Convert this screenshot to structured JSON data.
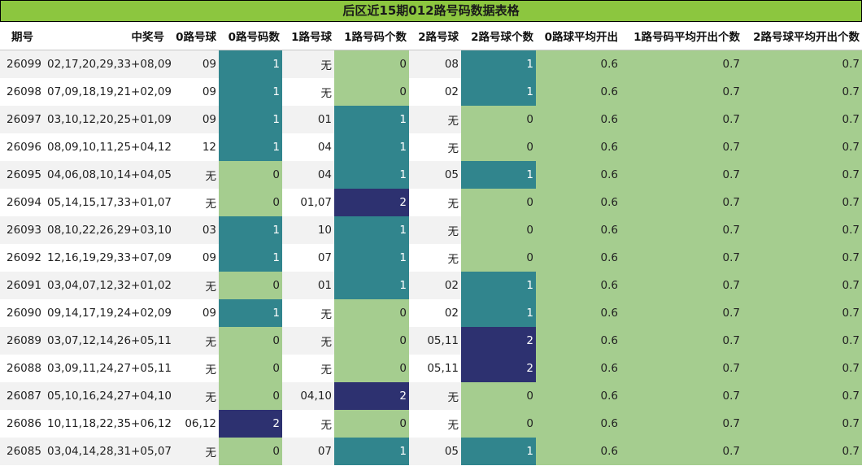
{
  "title": "后区近15期012路号码数据表格",
  "columns": [
    "期号",
    "中奖号",
    "0路号球",
    "0路号码数",
    "1路号球",
    "1路号码个数",
    "2路号球",
    "2路号球个数",
    "0路球平均开出",
    "1路号码平均开出个数",
    "2路号球平均开出个数"
  ],
  "colors": {
    "title_bg": "#8cc63f",
    "count_0": "#a5cd8f",
    "count_1": "#31858d",
    "count_2": "#2d3170",
    "average_bg": "#a5cd8f"
  },
  "rows": [
    {
      "issue": "26099",
      "numbers": "02,17,20,29,33+08,09",
      "r0_balls": "09",
      "r0_count": "1",
      "r1_balls": "无",
      "r1_count": "0",
      "r2_balls": "08",
      "r2_count": "1",
      "r0_avg": "0.6",
      "r1_avg": "0.7",
      "r2_avg": "0.7"
    },
    {
      "issue": "26098",
      "numbers": "07,09,18,19,21+02,09",
      "r0_balls": "09",
      "r0_count": "1",
      "r1_balls": "无",
      "r1_count": "0",
      "r2_balls": "02",
      "r2_count": "1",
      "r0_avg": "0.6",
      "r1_avg": "0.7",
      "r2_avg": "0.7"
    },
    {
      "issue": "26097",
      "numbers": "03,10,12,20,25+01,09",
      "r0_balls": "09",
      "r0_count": "1",
      "r1_balls": "01",
      "r1_count": "1",
      "r2_balls": "无",
      "r2_count": "0",
      "r0_avg": "0.6",
      "r1_avg": "0.7",
      "r2_avg": "0.7"
    },
    {
      "issue": "26096",
      "numbers": "08,09,10,11,25+04,12",
      "r0_balls": "12",
      "r0_count": "1",
      "r1_balls": "04",
      "r1_count": "1",
      "r2_balls": "无",
      "r2_count": "0",
      "r0_avg": "0.6",
      "r1_avg": "0.7",
      "r2_avg": "0.7"
    },
    {
      "issue": "26095",
      "numbers": "04,06,08,10,14+04,05",
      "r0_balls": "无",
      "r0_count": "0",
      "r1_balls": "04",
      "r1_count": "1",
      "r2_balls": "05",
      "r2_count": "1",
      "r0_avg": "0.6",
      "r1_avg": "0.7",
      "r2_avg": "0.7"
    },
    {
      "issue": "26094",
      "numbers": "05,14,15,17,33+01,07",
      "r0_balls": "无",
      "r0_count": "0",
      "r1_balls": "01,07",
      "r1_count": "2",
      "r2_balls": "无",
      "r2_count": "0",
      "r0_avg": "0.6",
      "r1_avg": "0.7",
      "r2_avg": "0.7"
    },
    {
      "issue": "26093",
      "numbers": "08,10,22,26,29+03,10",
      "r0_balls": "03",
      "r0_count": "1",
      "r1_balls": "10",
      "r1_count": "1",
      "r2_balls": "无",
      "r2_count": "0",
      "r0_avg": "0.6",
      "r1_avg": "0.7",
      "r2_avg": "0.7"
    },
    {
      "issue": "26092",
      "numbers": "12,16,19,29,33+07,09",
      "r0_balls": "09",
      "r0_count": "1",
      "r1_balls": "07",
      "r1_count": "1",
      "r2_balls": "无",
      "r2_count": "0",
      "r0_avg": "0.6",
      "r1_avg": "0.7",
      "r2_avg": "0.7"
    },
    {
      "issue": "26091",
      "numbers": "03,04,07,12,32+01,02",
      "r0_balls": "无",
      "r0_count": "0",
      "r1_balls": "01",
      "r1_count": "1",
      "r2_balls": "02",
      "r2_count": "1",
      "r0_avg": "0.6",
      "r1_avg": "0.7",
      "r2_avg": "0.7"
    },
    {
      "issue": "26090",
      "numbers": "09,14,17,19,24+02,09",
      "r0_balls": "09",
      "r0_count": "1",
      "r1_balls": "无",
      "r1_count": "0",
      "r2_balls": "02",
      "r2_count": "1",
      "r0_avg": "0.6",
      "r1_avg": "0.7",
      "r2_avg": "0.7"
    },
    {
      "issue": "26089",
      "numbers": "03,07,12,14,26+05,11",
      "r0_balls": "无",
      "r0_count": "0",
      "r1_balls": "无",
      "r1_count": "0",
      "r2_balls": "05,11",
      "r2_count": "2",
      "r0_avg": "0.6",
      "r1_avg": "0.7",
      "r2_avg": "0.7"
    },
    {
      "issue": "26088",
      "numbers": "03,09,11,24,27+05,11",
      "r0_balls": "无",
      "r0_count": "0",
      "r1_balls": "无",
      "r1_count": "0",
      "r2_balls": "05,11",
      "r2_count": "2",
      "r0_avg": "0.6",
      "r1_avg": "0.7",
      "r2_avg": "0.7"
    },
    {
      "issue": "26087",
      "numbers": "05,10,16,24,27+04,10",
      "r0_balls": "无",
      "r0_count": "0",
      "r1_balls": "04,10",
      "r1_count": "2",
      "r2_balls": "无",
      "r2_count": "0",
      "r0_avg": "0.6",
      "r1_avg": "0.7",
      "r2_avg": "0.7"
    },
    {
      "issue": "26086",
      "numbers": "10,11,18,22,35+06,12",
      "r0_balls": "06,12",
      "r0_count": "2",
      "r1_balls": "无",
      "r1_count": "0",
      "r2_balls": "无",
      "r2_count": "0",
      "r0_avg": "0.6",
      "r1_avg": "0.7",
      "r2_avg": "0.7"
    },
    {
      "issue": "26085",
      "numbers": "03,04,14,28,31+05,07",
      "r0_balls": "无",
      "r0_count": "0",
      "r1_balls": "07",
      "r1_count": "1",
      "r2_balls": "05",
      "r2_count": "1",
      "r0_avg": "0.6",
      "r1_avg": "0.7",
      "r2_avg": "0.7"
    }
  ]
}
